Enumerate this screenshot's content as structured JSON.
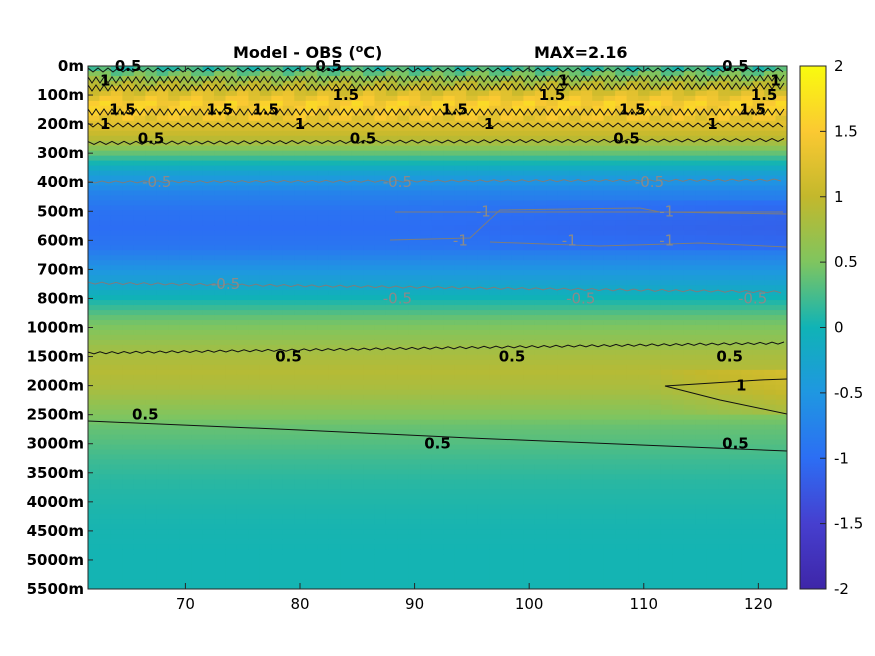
{
  "chart_data": {
    "type": "heatmap",
    "title": "Model - OBS (",
    "title_unit_sup": "o",
    "title_unit_end": "C)",
    "max_label": "MAX=2.16",
    "x_ticks": [
      70,
      80,
      90,
      100,
      110,
      120
    ],
    "xlim": [
      61.5,
      122.5
    ],
    "y_ticks": [
      "0m",
      "100m",
      "200m",
      "300m",
      "400m",
      "500m",
      "600m",
      "700m",
      "800m",
      "1000m",
      "1500m",
      "2000m",
      "2500m",
      "3000m",
      "3500m",
      "4000m",
      "4500m",
      "5000m",
      "5500m"
    ],
    "colorbar": {
      "ticks": [
        2,
        1.5,
        1,
        0.5,
        0,
        -0.5,
        -1,
        -1.5,
        -2
      ],
      "clim": [
        -2,
        2
      ]
    },
    "profile_rows": [
      0.2,
      1.0,
      1.55,
      1.3,
      0.9,
      0.2,
      -0.4,
      -0.75,
      -0.95,
      -1.0,
      -0.9,
      -0.6,
      -0.3,
      0.05,
      0.4,
      0.6,
      0.8,
      0.9,
      0.8,
      0.6,
      0.4,
      0.3,
      0.2,
      0.12,
      0.08,
      0.05,
      0.03,
      0.02,
      0.02,
      0.02
    ],
    "contour_labels": [
      {
        "text": "0.5",
        "x": 65,
        "depth": "0m",
        "style": "black"
      },
      {
        "text": "0.5",
        "x": 82.5,
        "depth": "0m",
        "style": "black"
      },
      {
        "text": "0.5",
        "x": 118,
        "depth": "0m",
        "style": "black"
      },
      {
        "text": "1",
        "x": 63,
        "depth": "50m",
        "style": "black"
      },
      {
        "text": "1.5",
        "x": 84,
        "depth": "100m",
        "style": "black"
      },
      {
        "text": "1",
        "x": 103,
        "depth": "50m",
        "style": "black"
      },
      {
        "text": "1.5",
        "x": 102,
        "depth": "100m",
        "style": "black"
      },
      {
        "text": "1",
        "x": 121.5,
        "depth": "50m",
        "style": "black"
      },
      {
        "text": "1.5",
        "x": 120.5,
        "depth": "100m",
        "style": "black"
      },
      {
        "text": "1.5",
        "x": 64.5,
        "depth": "150m",
        "style": "black"
      },
      {
        "text": "1.5",
        "x": 73,
        "depth": "150m",
        "style": "black"
      },
      {
        "text": "1.5",
        "x": 77,
        "depth": "150m",
        "style": "black"
      },
      {
        "text": "1.5",
        "x": 93.5,
        "depth": "150m",
        "style": "black"
      },
      {
        "text": "1.5",
        "x": 109,
        "depth": "150m",
        "style": "black"
      },
      {
        "text": "1.5",
        "x": 119.5,
        "depth": "150m",
        "style": "black"
      },
      {
        "text": "1",
        "x": 63,
        "depth": "200m",
        "style": "black"
      },
      {
        "text": "1",
        "x": 80,
        "depth": "200m",
        "style": "black"
      },
      {
        "text": "1",
        "x": 96.5,
        "depth": "200m",
        "style": "black"
      },
      {
        "text": "1",
        "x": 116,
        "depth": "200m",
        "style": "black"
      },
      {
        "text": "0.5",
        "x": 67,
        "depth": "250m",
        "style": "black"
      },
      {
        "text": "0.5",
        "x": 85.5,
        "depth": "250m",
        "style": "black"
      },
      {
        "text": "0.5",
        "x": 108.5,
        "depth": "250m",
        "style": "black"
      },
      {
        "text": "-0.5",
        "x": 67.5,
        "depth": "400m",
        "style": "grey"
      },
      {
        "text": "-0.5",
        "x": 88.5,
        "depth": "400m",
        "style": "grey"
      },
      {
        "text": "-0.5",
        "x": 110.5,
        "depth": "400m",
        "style": "grey"
      },
      {
        "text": "-1",
        "x": 96,
        "depth": "500m",
        "style": "grey"
      },
      {
        "text": "-1",
        "x": 94,
        "depth": "600m",
        "style": "grey"
      },
      {
        "text": "-1",
        "x": 103.5,
        "depth": "600m",
        "style": "grey"
      },
      {
        "text": "-1",
        "x": 112,
        "depth": "500m",
        "style": "grey"
      },
      {
        "text": "-1",
        "x": 112,
        "depth": "600m",
        "style": "grey"
      },
      {
        "text": "-0.5",
        "x": 73.5,
        "depth": "750m",
        "style": "grey"
      },
      {
        "text": "-0.5",
        "x": 88.5,
        "depth": "800m",
        "style": "grey"
      },
      {
        "text": "-0.5",
        "x": 104.5,
        "depth": "800m",
        "style": "grey"
      },
      {
        "text": "-0.5",
        "x": 119.5,
        "depth": "800m",
        "style": "grey"
      },
      {
        "text": "0.5",
        "x": 79,
        "depth": "1500m",
        "style": "black"
      },
      {
        "text": "0.5",
        "x": 98.5,
        "depth": "1500m",
        "style": "black"
      },
      {
        "text": "0.5",
        "x": 117.5,
        "depth": "1500m",
        "style": "black"
      },
      {
        "text": "1",
        "x": 118.5,
        "depth": "2000m",
        "style": "black"
      },
      {
        "text": "0.5",
        "x": 66.5,
        "depth": "2500m",
        "style": "black"
      },
      {
        "text": "0.5",
        "x": 92,
        "depth": "3000m",
        "style": "black"
      },
      {
        "text": "0.5",
        "x": 118,
        "depth": "3000m",
        "style": "black"
      }
    ]
  }
}
